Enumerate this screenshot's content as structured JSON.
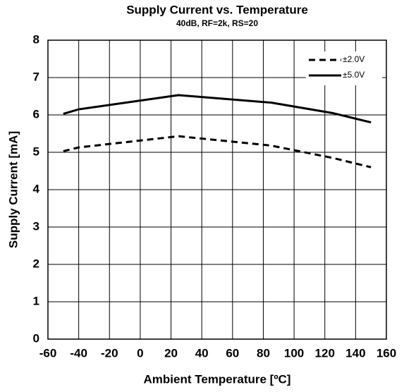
{
  "chart_data": {
    "type": "line",
    "title": "Supply Current vs. Temperature",
    "subtitle": "40dB, RF=2k, RS=20",
    "x_label": "Ambient Temperature [ºC]",
    "y_label": "Supply Current [mA]",
    "x": [
      -50,
      -40,
      25,
      85,
      125,
      150
    ],
    "series": [
      {
        "name": "±2.0V",
        "color": "#000000",
        "style": "dashed",
        "values": [
          5.03,
          5.13,
          5.43,
          5.18,
          4.85,
          4.6
        ]
      },
      {
        "name": "±5.0V",
        "color": "#000000",
        "style": "solid",
        "values": [
          6.03,
          6.15,
          6.53,
          6.33,
          6.05,
          5.8
        ]
      }
    ],
    "xlim": [
      -60,
      160
    ],
    "xticks": [
      -60,
      -40,
      -20,
      0,
      20,
      40,
      60,
      80,
      100,
      120,
      140,
      160
    ],
    "ylim": [
      0,
      8
    ],
    "yticks": [
      0,
      1,
      2,
      3,
      4,
      5,
      6,
      7,
      8
    ],
    "grid": true,
    "legend": "upper right"
  }
}
